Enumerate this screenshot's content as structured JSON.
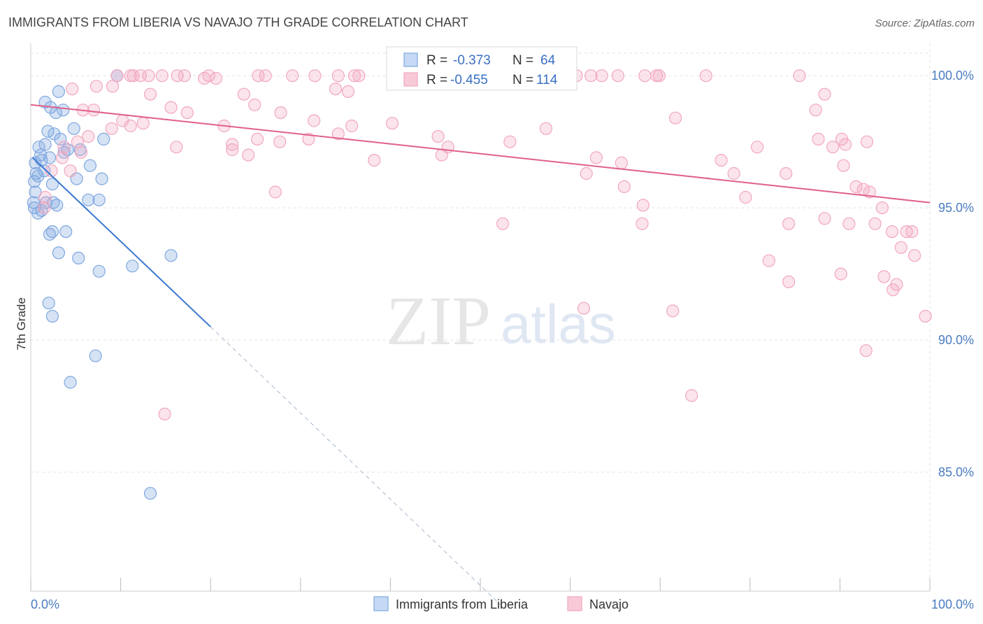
{
  "title": "IMMIGRANTS FROM LIBERIA VS NAVAJO 7TH GRADE CORRELATION CHART",
  "source": "Source: ZipAtlas.com",
  "watermark": {
    "zip": "ZIP",
    "atlas": "atlas"
  },
  "legend": {
    "r_label": "R =",
    "n_label": "N =",
    "rows": [
      {
        "r": "-0.373",
        "n": "64"
      },
      {
        "r": "-0.455",
        "n": "114"
      }
    ]
  },
  "chart_data": {
    "type": "scatter",
    "title": "IMMIGRANTS FROM LIBERIA VS NAVAJO 7TH GRADE CORRELATION CHART",
    "xlabel": "",
    "ylabel": "7th Grade",
    "xlim": [
      0,
      100
    ],
    "ylim": [
      80.5,
      100.8
    ],
    "x_tick_labels": [
      "0.0%",
      "100.0%"
    ],
    "y_ticks": [
      {
        "value": 100,
        "label": "100.0%"
      },
      {
        "value": 95,
        "label": "95.0%"
      },
      {
        "value": 90,
        "label": "90.0%"
      },
      {
        "value": 85,
        "label": "85.0%"
      }
    ],
    "grid": true,
    "legend_position": "top-center",
    "series": [
      {
        "name": "Immigrants from Liberia",
        "color": "#7fa8e0",
        "line_color": "#3a78d0",
        "regression": {
          "x0": 0.2,
          "y0": 96.9,
          "x1": 20,
          "y1": 90.5,
          "dash_x_end": 52.5,
          "dash_y_end": 79.9
        },
        "points": [
          [
            9.6,
            100.0
          ],
          [
            1.6,
            99.0
          ],
          [
            3.1,
            99.4
          ],
          [
            2.2,
            98.8
          ],
          [
            2.8,
            98.6
          ],
          [
            3.6,
            98.7
          ],
          [
            1.9,
            97.9
          ],
          [
            4.8,
            98.0
          ],
          [
            2.6,
            97.8
          ],
          [
            3.3,
            97.6
          ],
          [
            8.1,
            97.6
          ],
          [
            0.9,
            97.3
          ],
          [
            1.6,
            97.4
          ],
          [
            1.1,
            97.0
          ],
          [
            2.1,
            96.9
          ],
          [
            3.7,
            97.1
          ],
          [
            5.5,
            97.2
          ],
          [
            4.1,
            97.2
          ],
          [
            0.5,
            96.7
          ],
          [
            1.2,
            96.8
          ],
          [
            6.6,
            96.6
          ],
          [
            0.6,
            96.3
          ],
          [
            1.5,
            96.4
          ],
          [
            0.8,
            96.2
          ],
          [
            5.1,
            96.1
          ],
          [
            7.9,
            96.1
          ],
          [
            0.4,
            96.0
          ],
          [
            2.4,
            95.9
          ],
          [
            0.5,
            95.6
          ],
          [
            6.4,
            95.3
          ],
          [
            7.6,
            95.3
          ],
          [
            0.3,
            95.2
          ],
          [
            1.7,
            95.2
          ],
          [
            2.5,
            95.2
          ],
          [
            2.9,
            95.1
          ],
          [
            0.4,
            95.0
          ],
          [
            1.2,
            94.9
          ],
          [
            0.8,
            94.8
          ],
          [
            2.4,
            94.1
          ],
          [
            3.9,
            94.1
          ],
          [
            2.1,
            94.0
          ],
          [
            3.1,
            93.3
          ],
          [
            5.3,
            93.1
          ],
          [
            15.6,
            93.2
          ],
          [
            7.6,
            92.6
          ],
          [
            11.3,
            92.8
          ],
          [
            2.0,
            91.4
          ],
          [
            2.4,
            90.9
          ],
          [
            7.2,
            89.4
          ],
          [
            4.4,
            88.4
          ],
          [
            13.3,
            84.2
          ]
        ]
      },
      {
        "name": "Navajo",
        "color": "#f2a7bf",
        "line_color": "#e0608a",
        "regression": {
          "x0": 0,
          "y0": 98.9,
          "x1": 100,
          "y1": 95.2
        },
        "points": [
          [
            9.6,
            100.0
          ],
          [
            11.1,
            100.0
          ],
          [
            11.4,
            100.0
          ],
          [
            12.2,
            100.0
          ],
          [
            13.1,
            100.0
          ],
          [
            14.6,
            100.0
          ],
          [
            16.3,
            100.0
          ],
          [
            17.1,
            100.0
          ],
          [
            19.3,
            99.9
          ],
          [
            19.8,
            100.0
          ],
          [
            20.6,
            99.9
          ],
          [
            25.3,
            100.0
          ],
          [
            26.1,
            100.0
          ],
          [
            29.1,
            100.0
          ],
          [
            31.6,
            100.0
          ],
          [
            34.2,
            100.0
          ],
          [
            36.0,
            100.0
          ],
          [
            36.5,
            100.0
          ],
          [
            48.3,
            100.0
          ],
          [
            52.4,
            100.0
          ],
          [
            56.0,
            100.0
          ],
          [
            60.7,
            100.0
          ],
          [
            62.3,
            100.0
          ],
          [
            63.5,
            100.0
          ],
          [
            65.3,
            100.0
          ],
          [
            68.3,
            100.0
          ],
          [
            69.6,
            100.0
          ],
          [
            69.9,
            100.0
          ],
          [
            75.1,
            100.0
          ],
          [
            85.5,
            100.0
          ],
          [
            4.6,
            99.5
          ],
          [
            7.3,
            99.6
          ],
          [
            9.1,
            99.6
          ],
          [
            13.3,
            99.3
          ],
          [
            23.7,
            99.3
          ],
          [
            33.9,
            99.5
          ],
          [
            35.3,
            99.4
          ],
          [
            24.9,
            98.9
          ],
          [
            88.3,
            99.3
          ],
          [
            5.8,
            98.7
          ],
          [
            7.0,
            98.7
          ],
          [
            15.6,
            98.8
          ],
          [
            17.4,
            98.6
          ],
          [
            21.5,
            98.1
          ],
          [
            27.8,
            98.6
          ],
          [
            31.5,
            98.3
          ],
          [
            35.7,
            98.1
          ],
          [
            40.2,
            98.2
          ],
          [
            71.7,
            98.4
          ],
          [
            87.3,
            98.7
          ],
          [
            9.0,
            98.0
          ],
          [
            10.2,
            98.3
          ],
          [
            11.1,
            98.1
          ],
          [
            12.5,
            98.2
          ],
          [
            16.2,
            97.3
          ],
          [
            22.4,
            97.2
          ],
          [
            22.4,
            97.4
          ],
          [
            25.2,
            97.6
          ],
          [
            27.7,
            97.5
          ],
          [
            30.9,
            97.6
          ],
          [
            34.2,
            97.8
          ],
          [
            45.3,
            97.7
          ],
          [
            46.4,
            97.3
          ],
          [
            53.3,
            97.5
          ],
          [
            57.3,
            98.0
          ],
          [
            62.9,
            96.9
          ],
          [
            65.7,
            96.7
          ],
          [
            80.8,
            97.3
          ],
          [
            87.6,
            97.6
          ],
          [
            89.2,
            97.3
          ],
          [
            90.2,
            97.6
          ],
          [
            90.6,
            97.4
          ],
          [
            93.0,
            97.5
          ],
          [
            5.2,
            97.5
          ],
          [
            6.4,
            97.7
          ],
          [
            3.7,
            97.3
          ],
          [
            5.6,
            97.1
          ],
          [
            3.5,
            96.9
          ],
          [
            2.3,
            96.4
          ],
          [
            4.4,
            96.4
          ],
          [
            24.2,
            97.0
          ],
          [
            38.2,
            96.8
          ],
          [
            45.7,
            97.0
          ],
          [
            61.8,
            96.3
          ],
          [
            76.8,
            96.8
          ],
          [
            78.2,
            96.3
          ],
          [
            84.0,
            96.3
          ],
          [
            90.4,
            96.6
          ],
          [
            66.0,
            95.8
          ],
          [
            68.1,
            95.1
          ],
          [
            79.5,
            95.4
          ],
          [
            91.8,
            95.8
          ],
          [
            93.3,
            95.6
          ],
          [
            92.6,
            95.7
          ],
          [
            94.7,
            95.0
          ],
          [
            27.2,
            95.6
          ],
          [
            1.6,
            95.4
          ],
          [
            1.5,
            95.0
          ],
          [
            52.5,
            94.4
          ],
          [
            68.0,
            94.4
          ],
          [
            84.3,
            94.4
          ],
          [
            88.3,
            94.6
          ],
          [
            91.0,
            94.4
          ],
          [
            93.9,
            94.4
          ],
          [
            95.8,
            94.1
          ],
          [
            97.4,
            94.1
          ],
          [
            98.0,
            94.1
          ],
          [
            96.8,
            93.5
          ],
          [
            98.3,
            93.2
          ],
          [
            82.1,
            93.0
          ],
          [
            90.1,
            92.5
          ],
          [
            94.9,
            92.4
          ],
          [
            96.3,
            92.1
          ],
          [
            84.3,
            92.2
          ],
          [
            95.9,
            91.9
          ],
          [
            61.5,
            91.2
          ],
          [
            71.4,
            91.1
          ],
          [
            99.5,
            90.9
          ],
          [
            92.9,
            89.6
          ],
          [
            14.9,
            87.2
          ],
          [
            73.5,
            87.9
          ]
        ]
      }
    ]
  },
  "bottom_legend": [
    {
      "label": "Immigrants from Liberia"
    },
    {
      "label": "Navajo"
    }
  ]
}
